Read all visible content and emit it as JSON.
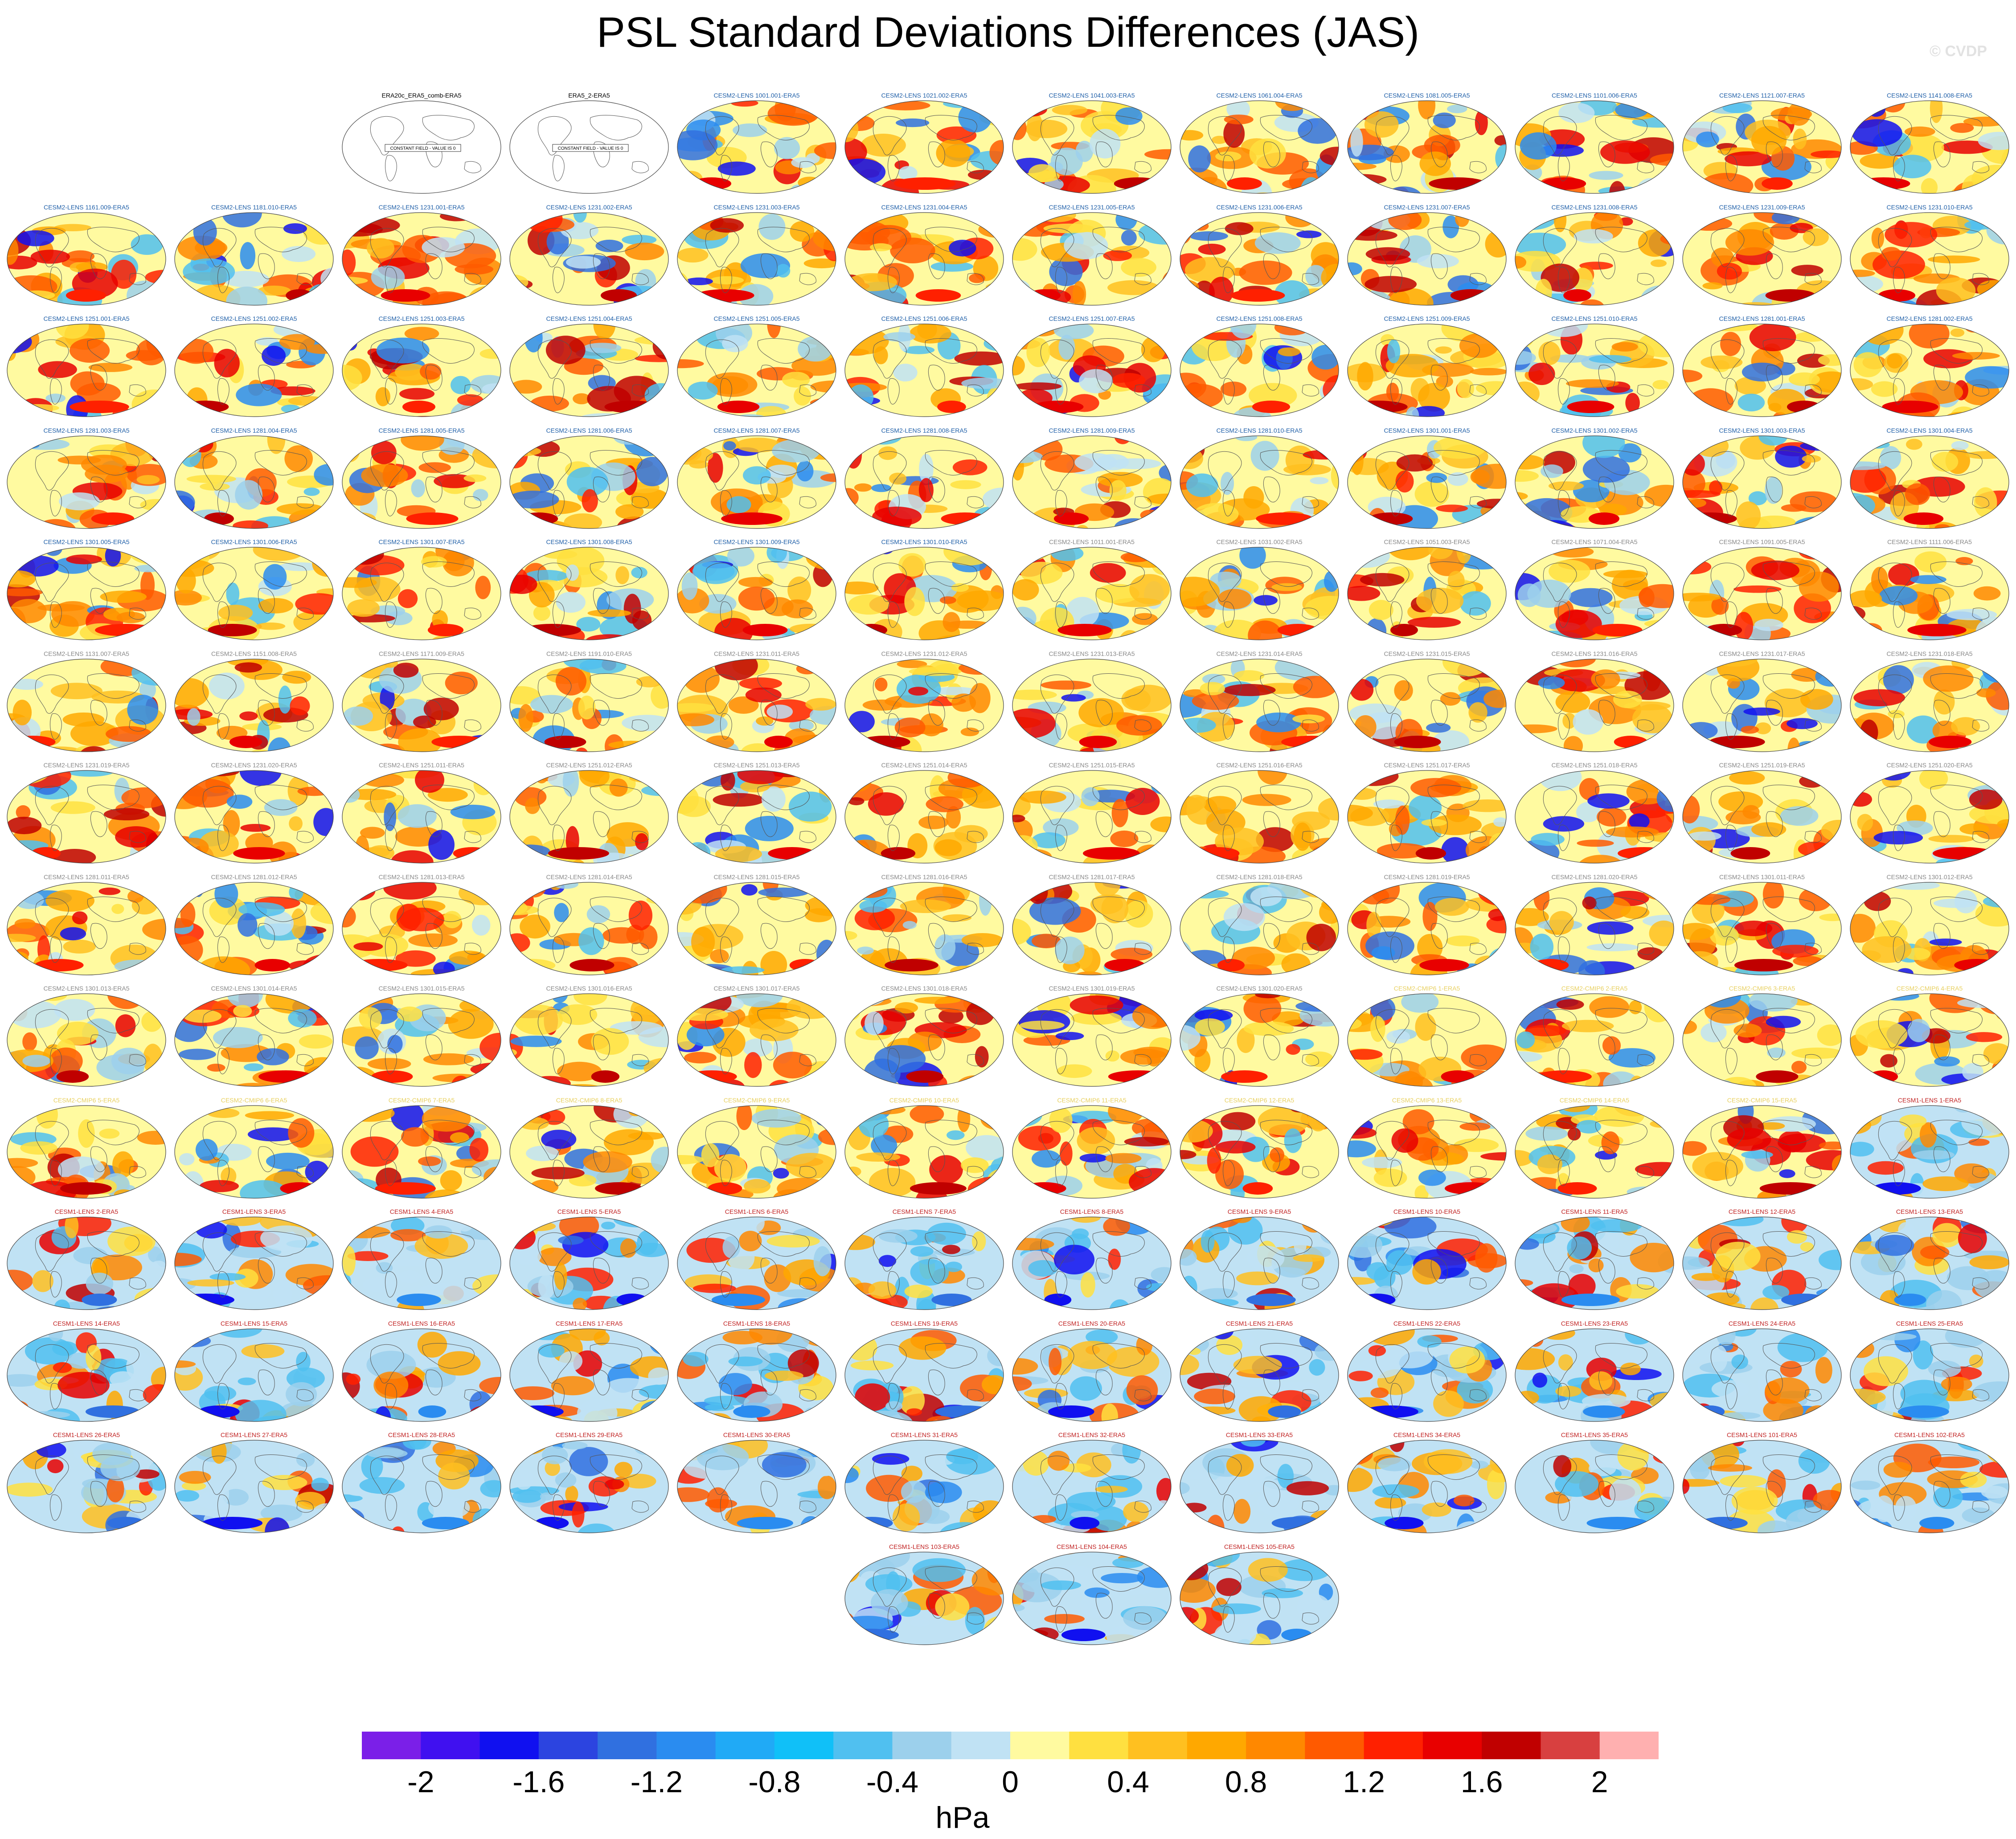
{
  "title": "PSL Standard Deviations Differences (JAS)",
  "credit": "© CVDP",
  "colorbar": {
    "unit": "hPa",
    "ticks": [
      "-2",
      "-1.6",
      "-1.2",
      "-0.8",
      "-0.4",
      "0",
      "0.4",
      "0.8",
      "1.2",
      "1.6",
      "2"
    ],
    "colors": [
      "#7b1fe8",
      "#4010f0",
      "#1010f0",
      "#2c44e0",
      "#3070e0",
      "#2a8cf0",
      "#20aaf6",
      "#10c0f8",
      "#50c0f0",
      "#9cd0ec",
      "#c0e2f4",
      "#fffaa0",
      "#ffe040",
      "#ffc020",
      "#ffa800",
      "#ff8800",
      "#ff5a00",
      "#ff2000",
      "#e80000",
      "#c00000",
      "#d84040",
      "#ffb0b0"
    ]
  },
  "colors": {
    "cesm2_title": "#1f5fa8",
    "cesm2_title_faded": "#888888",
    "cmip6_title": "#e8d060",
    "cesm1_title": "#c02020",
    "obs_title": "#000000"
  },
  "chart_data": {
    "type": "heatmap",
    "variable": "PSL standard deviation difference",
    "season": "JAS",
    "unit": "hPa",
    "color_range": [
      -2.2,
      2.2
    ],
    "panels": [
      {
        "label": "ERA20c_ERA5_comb-ERA5",
        "group": "obs",
        "note": "CONSTANT FIELD - VALUE IS 0"
      },
      {
        "label": "ERA5_2-ERA5",
        "group": "obs",
        "note": "CONSTANT FIELD - VALUE IS 0"
      },
      {
        "label": "CESM2-LENS 1001.001-ERA5",
        "group": "cesm2"
      },
      {
        "label": "CESM2-LENS 1021.002-ERA5",
        "group": "cesm2"
      },
      {
        "label": "CESM2-LENS 1041.003-ERA5",
        "group": "cesm2"
      },
      {
        "label": "CESM2-LENS 1061.004-ERA5",
        "group": "cesm2"
      },
      {
        "label": "CESM2-LENS 1081.005-ERA5",
        "group": "cesm2"
      },
      {
        "label": "CESM2-LENS 1101.006-ERA5",
        "group": "cesm2"
      },
      {
        "label": "CESM2-LENS 1121.007-ERA5",
        "group": "cesm2"
      },
      {
        "label": "CESM2-LENS 1141.008-ERA5",
        "group": "cesm2"
      },
      {
        "label": "CESM2-LENS 1161.009-ERA5",
        "group": "cesm2"
      },
      {
        "label": "CESM2-LENS 1181.010-ERA5",
        "group": "cesm2"
      },
      {
        "label": "CESM2-LENS 1231.001-ERA5",
        "group": "cesm2"
      },
      {
        "label": "CESM2-LENS 1231.002-ERA5",
        "group": "cesm2"
      },
      {
        "label": "CESM2-LENS 1231.003-ERA5",
        "group": "cesm2"
      },
      {
        "label": "CESM2-LENS 1231.004-ERA5",
        "group": "cesm2"
      },
      {
        "label": "CESM2-LENS 1231.005-ERA5",
        "group": "cesm2"
      },
      {
        "label": "CESM2-LENS 1231.006-ERA5",
        "group": "cesm2"
      },
      {
        "label": "CESM2-LENS 1231.007-ERA5",
        "group": "cesm2"
      },
      {
        "label": "CESM2-LENS 1231.008-ERA5",
        "group": "cesm2"
      },
      {
        "label": "CESM2-LENS 1231.009-ERA5",
        "group": "cesm2"
      },
      {
        "label": "CESM2-LENS 1231.010-ERA5",
        "group": "cesm2"
      },
      {
        "label": "CESM2-LENS 1251.001-ERA5",
        "group": "cesm2"
      },
      {
        "label": "CESM2-LENS 1251.002-ERA5",
        "group": "cesm2"
      },
      {
        "label": "CESM2-LENS 1251.003-ERA5",
        "group": "cesm2"
      },
      {
        "label": "CESM2-LENS 1251.004-ERA5",
        "group": "cesm2"
      },
      {
        "label": "CESM2-LENS 1251.005-ERA5",
        "group": "cesm2"
      },
      {
        "label": "CESM2-LENS 1251.006-ERA5",
        "group": "cesm2"
      },
      {
        "label": "CESM2-LENS 1251.007-ERA5",
        "group": "cesm2"
      },
      {
        "label": "CESM2-LENS 1251.008-ERA5",
        "group": "cesm2"
      },
      {
        "label": "CESM2-LENS 1251.009-ERA5",
        "group": "cesm2"
      },
      {
        "label": "CESM2-LENS 1251.010-ERA5",
        "group": "cesm2"
      },
      {
        "label": "CESM2-LENS 1281.001-ERA5",
        "group": "cesm2"
      },
      {
        "label": "CESM2-LENS 1281.002-ERA5",
        "group": "cesm2"
      },
      {
        "label": "CESM2-LENS 1281.003-ERA5",
        "group": "cesm2"
      },
      {
        "label": "CESM2-LENS 1281.004-ERA5",
        "group": "cesm2"
      },
      {
        "label": "CESM2-LENS 1281.005-ERA5",
        "group": "cesm2"
      },
      {
        "label": "CESM2-LENS 1281.006-ERA5",
        "group": "cesm2"
      },
      {
        "label": "CESM2-LENS 1281.007-ERA5",
        "group": "cesm2"
      },
      {
        "label": "CESM2-LENS 1281.008-ERA5",
        "group": "cesm2"
      },
      {
        "label": "CESM2-LENS 1281.009-ERA5",
        "group": "cesm2"
      },
      {
        "label": "CESM2-LENS 1281.010-ERA5",
        "group": "cesm2"
      },
      {
        "label": "CESM2-LENS 1301.001-ERA5",
        "group": "cesm2"
      },
      {
        "label": "CESM2-LENS 1301.002-ERA5",
        "group": "cesm2"
      },
      {
        "label": "CESM2-LENS 1301.003-ERA5",
        "group": "cesm2"
      },
      {
        "label": "CESM2-LENS 1301.004-ERA5",
        "group": "cesm2"
      },
      {
        "label": "CESM2-LENS 1301.005-ERA5",
        "group": "cesm2"
      },
      {
        "label": "CESM2-LENS 1301.006-ERA5",
        "group": "cesm2"
      },
      {
        "label": "CESM2-LENS 1301.007-ERA5",
        "group": "cesm2"
      },
      {
        "label": "CESM2-LENS 1301.008-ERA5",
        "group": "cesm2"
      },
      {
        "label": "CESM2-LENS 1301.009-ERA5",
        "group": "cesm2"
      },
      {
        "label": "CESM2-LENS 1301.010-ERA5",
        "group": "cesm2"
      },
      {
        "label": "CESM2-LENS 1011.001-ERA5",
        "group": "cesm2b"
      },
      {
        "label": "CESM2-LENS 1031.002-ERA5",
        "group": "cesm2b"
      },
      {
        "label": "CESM2-LENS 1051.003-ERA5",
        "group": "cesm2b"
      },
      {
        "label": "CESM2-LENS 1071.004-ERA5",
        "group": "cesm2b"
      },
      {
        "label": "CESM2-LENS 1091.005-ERA5",
        "group": "cesm2b"
      },
      {
        "label": "CESM2-LENS 1111.006-ERA5",
        "group": "cesm2b"
      },
      {
        "label": "CESM2-LENS 1131.007-ERA5",
        "group": "cesm2b"
      },
      {
        "label": "CESM2-LENS 1151.008-ERA5",
        "group": "cesm2b"
      },
      {
        "label": "CESM2-LENS 1171.009-ERA5",
        "group": "cesm2b"
      },
      {
        "label": "CESM2-LENS 1191.010-ERA5",
        "group": "cesm2b"
      },
      {
        "label": "CESM2-LENS 1231.011-ERA5",
        "group": "cesm2b"
      },
      {
        "label": "CESM2-LENS 1231.012-ERA5",
        "group": "cesm2b"
      },
      {
        "label": "CESM2-LENS 1231.013-ERA5",
        "group": "cesm2b"
      },
      {
        "label": "CESM2-LENS 1231.014-ERA5",
        "group": "cesm2b"
      },
      {
        "label": "CESM2-LENS 1231.015-ERA5",
        "group": "cesm2b"
      },
      {
        "label": "CESM2-LENS 1231.016-ERA5",
        "group": "cesm2b"
      },
      {
        "label": "CESM2-LENS 1231.017-ERA5",
        "group": "cesm2b"
      },
      {
        "label": "CESM2-LENS 1231.018-ERA5",
        "group": "cesm2b"
      },
      {
        "label": "CESM2-LENS 1231.019-ERA5",
        "group": "cesm2b"
      },
      {
        "label": "CESM2-LENS 1231.020-ERA5",
        "group": "cesm2b"
      },
      {
        "label": "CESM2-LENS 1251.011-ERA5",
        "group": "cesm2b"
      },
      {
        "label": "CESM2-LENS 1251.012-ERA5",
        "group": "cesm2b"
      },
      {
        "label": "CESM2-LENS 1251.013-ERA5",
        "group": "cesm2b"
      },
      {
        "label": "CESM2-LENS 1251.014-ERA5",
        "group": "cesm2b"
      },
      {
        "label": "CESM2-LENS 1251.015-ERA5",
        "group": "cesm2b"
      },
      {
        "label": "CESM2-LENS 1251.016-ERA5",
        "group": "cesm2b"
      },
      {
        "label": "CESM2-LENS 1251.017-ERA5",
        "group": "cesm2b"
      },
      {
        "label": "CESM2-LENS 1251.018-ERA5",
        "group": "cesm2b"
      },
      {
        "label": "CESM2-LENS 1251.019-ERA5",
        "group": "cesm2b"
      },
      {
        "label": "CESM2-LENS 1251.020-ERA5",
        "group": "cesm2b"
      },
      {
        "label": "CESM2-LENS 1281.011-ERA5",
        "group": "cesm2b"
      },
      {
        "label": "CESM2-LENS 1281.012-ERA5",
        "group": "cesm2b"
      },
      {
        "label": "CESM2-LENS 1281.013-ERA5",
        "group": "cesm2b"
      },
      {
        "label": "CESM2-LENS 1281.014-ERA5",
        "group": "cesm2b"
      },
      {
        "label": "CESM2-LENS 1281.015-ERA5",
        "group": "cesm2b"
      },
      {
        "label": "CESM2-LENS 1281.016-ERA5",
        "group": "cesm2b"
      },
      {
        "label": "CESM2-LENS 1281.017-ERA5",
        "group": "cesm2b"
      },
      {
        "label": "CESM2-LENS 1281.018-ERA5",
        "group": "cesm2b"
      },
      {
        "label": "CESM2-LENS 1281.019-ERA5",
        "group": "cesm2b"
      },
      {
        "label": "CESM2-LENS 1281.020-ERA5",
        "group": "cesm2b"
      },
      {
        "label": "CESM2-LENS 1301.011-ERA5",
        "group": "cesm2b"
      },
      {
        "label": "CESM2-LENS 1301.012-ERA5",
        "group": "cesm2b"
      },
      {
        "label": "CESM2-LENS 1301.013-ERA5",
        "group": "cesm2b"
      },
      {
        "label": "CESM2-LENS 1301.014-ERA5",
        "group": "cesm2b"
      },
      {
        "label": "CESM2-LENS 1301.015-ERA5",
        "group": "cesm2b"
      },
      {
        "label": "CESM2-LENS 1301.016-ERA5",
        "group": "cesm2b"
      },
      {
        "label": "CESM2-LENS 1301.017-ERA5",
        "group": "cesm2b"
      },
      {
        "label": "CESM2-LENS 1301.018-ERA5",
        "group": "cesm2b"
      },
      {
        "label": "CESM2-LENS 1301.019-ERA5",
        "group": "cesm2b"
      },
      {
        "label": "CESM2-LENS 1301.020-ERA5",
        "group": "cesm2b"
      },
      {
        "label": "CESM2-CMIP6 1-ERA5",
        "group": "cmip6"
      },
      {
        "label": "CESM2-CMIP6 2-ERA5",
        "group": "cmip6"
      },
      {
        "label": "CESM2-CMIP6 3-ERA5",
        "group": "cmip6"
      },
      {
        "label": "CESM2-CMIP6 4-ERA5",
        "group": "cmip6"
      },
      {
        "label": "CESM2-CMIP6 5-ERA5",
        "group": "cmip6"
      },
      {
        "label": "CESM2-CMIP6 6-ERA5",
        "group": "cmip6"
      },
      {
        "label": "CESM2-CMIP6 7-ERA5",
        "group": "cmip6"
      },
      {
        "label": "CESM2-CMIP6 8-ERA5",
        "group": "cmip6"
      },
      {
        "label": "CESM2-CMIP6 9-ERA5",
        "group": "cmip6"
      },
      {
        "label": "CESM2-CMIP6 10-ERA5",
        "group": "cmip6"
      },
      {
        "label": "CESM2-CMIP6 11-ERA5",
        "group": "cmip6"
      },
      {
        "label": "CESM2-CMIP6 12-ERA5",
        "group": "cmip6"
      },
      {
        "label": "CESM2-CMIP6 13-ERA5",
        "group": "cmip6"
      },
      {
        "label": "CESM2-CMIP6 14-ERA5",
        "group": "cmip6"
      },
      {
        "label": "CESM2-CMIP6 15-ERA5",
        "group": "cmip6"
      },
      {
        "label": "CESM1-LENS 1-ERA5",
        "group": "cesm1"
      },
      {
        "label": "CESM1-LENS 2-ERA5",
        "group": "cesm1"
      },
      {
        "label": "CESM1-LENS 3-ERA5",
        "group": "cesm1"
      },
      {
        "label": "CESM1-LENS 4-ERA5",
        "group": "cesm1"
      },
      {
        "label": "CESM1-LENS 5-ERA5",
        "group": "cesm1"
      },
      {
        "label": "CESM1-LENS 6-ERA5",
        "group": "cesm1"
      },
      {
        "label": "CESM1-LENS 7-ERA5",
        "group": "cesm1"
      },
      {
        "label": "CESM1-LENS 8-ERA5",
        "group": "cesm1"
      },
      {
        "label": "CESM1-LENS 9-ERA5",
        "group": "cesm1"
      },
      {
        "label": "CESM1-LENS 10-ERA5",
        "group": "cesm1"
      },
      {
        "label": "CESM1-LENS 11-ERA5",
        "group": "cesm1"
      },
      {
        "label": "CESM1-LENS 12-ERA5",
        "group": "cesm1"
      },
      {
        "label": "CESM1-LENS 13-ERA5",
        "group": "cesm1"
      },
      {
        "label": "CESM1-LENS 14-ERA5",
        "group": "cesm1"
      },
      {
        "label": "CESM1-LENS 15-ERA5",
        "group": "cesm1"
      },
      {
        "label": "CESM1-LENS 16-ERA5",
        "group": "cesm1"
      },
      {
        "label": "CESM1-LENS 17-ERA5",
        "group": "cesm1"
      },
      {
        "label": "CESM1-LENS 18-ERA5",
        "group": "cesm1"
      },
      {
        "label": "CESM1-LENS 19-ERA5",
        "group": "cesm1"
      },
      {
        "label": "CESM1-LENS 20-ERA5",
        "group": "cesm1"
      },
      {
        "label": "CESM1-LENS 21-ERA5",
        "group": "cesm1"
      },
      {
        "label": "CESM1-LENS 22-ERA5",
        "group": "cesm1"
      },
      {
        "label": "CESM1-LENS 23-ERA5",
        "group": "cesm1"
      },
      {
        "label": "CESM1-LENS 24-ERA5",
        "group": "cesm1"
      },
      {
        "label": "CESM1-LENS 25-ERA5",
        "group": "cesm1"
      },
      {
        "label": "CESM1-LENS 26-ERA5",
        "group": "cesm1"
      },
      {
        "label": "CESM1-LENS 27-ERA5",
        "group": "cesm1"
      },
      {
        "label": "CESM1-LENS 28-ERA5",
        "group": "cesm1"
      },
      {
        "label": "CESM1-LENS 29-ERA5",
        "group": "cesm1"
      },
      {
        "label": "CESM1-LENS 30-ERA5",
        "group": "cesm1"
      },
      {
        "label": "CESM1-LENS 31-ERA5",
        "group": "cesm1"
      },
      {
        "label": "CESM1-LENS 32-ERA5",
        "group": "cesm1"
      },
      {
        "label": "CESM1-LENS 33-ERA5",
        "group": "cesm1"
      },
      {
        "label": "CESM1-LENS 34-ERA5",
        "group": "cesm1"
      },
      {
        "label": "CESM1-LENS 35-ERA5",
        "group": "cesm1"
      },
      {
        "label": "CESM1-LENS 101-ERA5",
        "group": "cesm1"
      },
      {
        "label": "CESM1-LENS 102-ERA5",
        "group": "cesm1"
      },
      {
        "label": "CESM1-LENS 103-ERA5",
        "group": "cesm1"
      },
      {
        "label": "CESM1-LENS 104-ERA5",
        "group": "cesm1"
      },
      {
        "label": "CESM1-LENS 105-ERA5",
        "group": "cesm1"
      }
    ]
  }
}
